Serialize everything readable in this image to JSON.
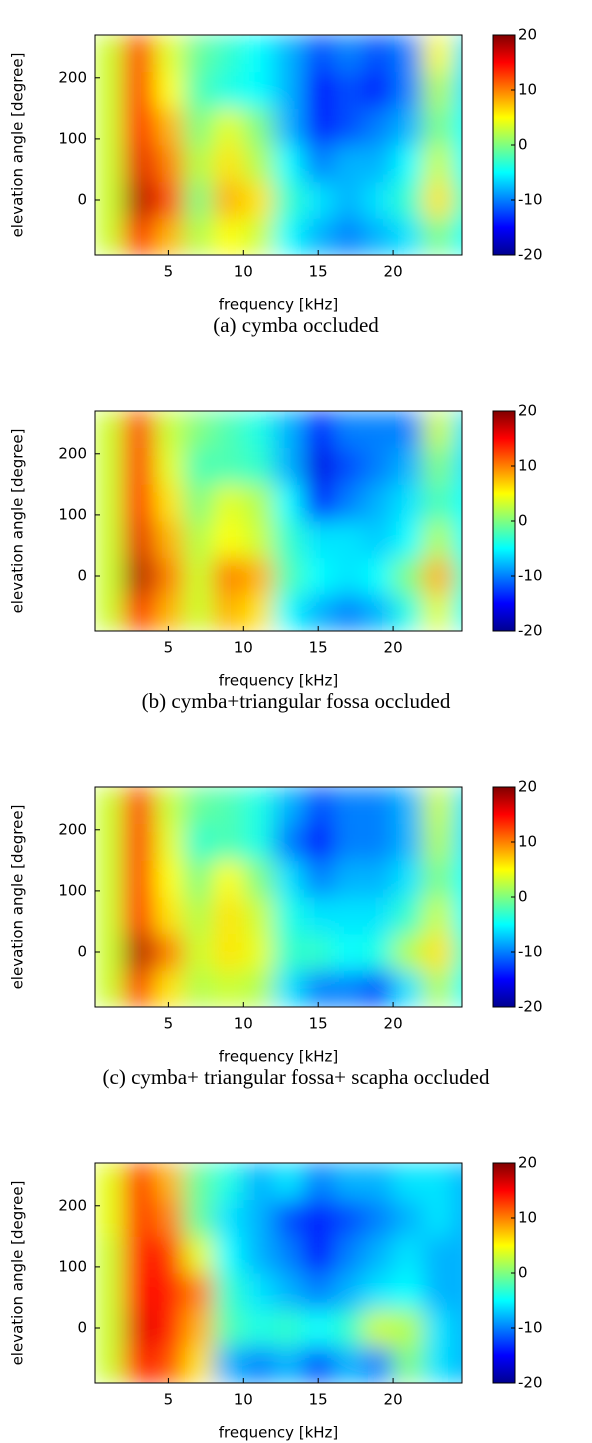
{
  "chart_data": [
    {
      "type": "heatmap",
      "colormap": "jet",
      "xlabel": "frequency [kHz]",
      "ylabel": "elevation angle [degree]",
      "caption": "(a) cymba occluded",
      "xlim": [
        0.1,
        24.6
      ],
      "ylim": [
        -90,
        270
      ],
      "xticks": [
        5,
        10,
        15,
        20
      ],
      "yticks": [
        0,
        100,
        200
      ],
      "clim": [
        -20,
        20
      ],
      "cticks": [
        20,
        10,
        0,
        -10,
        -20
      ],
      "x": [
        1,
        3,
        5,
        7,
        9,
        11,
        13,
        15,
        17,
        19,
        21,
        23,
        25
      ],
      "y": [
        -60,
        0,
        60,
        120,
        180,
        240
      ],
      "values": [
        [
          3,
          14,
          8,
          2,
          5,
          3,
          -5,
          -8,
          -10,
          -8,
          -6,
          0,
          -5
        ],
        [
          3,
          18,
          12,
          0,
          8,
          6,
          -3,
          -6,
          -8,
          -6,
          -3,
          6,
          -3
        ],
        [
          3,
          16,
          10,
          2,
          6,
          2,
          -5,
          -10,
          -8,
          -8,
          -5,
          3,
          -5
        ],
        [
          3,
          15,
          8,
          0,
          4,
          0,
          -8,
          -14,
          -12,
          -10,
          -8,
          0,
          -5
        ],
        [
          3,
          14,
          5,
          -2,
          -4,
          -5,
          -8,
          -15,
          -12,
          -14,
          -10,
          2,
          -6
        ],
        [
          3,
          13,
          4,
          -1,
          -3,
          -5,
          -8,
          -12,
          -10,
          -12,
          -10,
          5,
          -6
        ]
      ]
    },
    {
      "type": "heatmap",
      "colormap": "jet",
      "xlabel": "frequency [kHz]",
      "ylabel": "elevation angle [degree]",
      "caption": "(b) cymba+triangular fossa occluded",
      "xlim": [
        0.1,
        24.6
      ],
      "ylim": [
        -90,
        270
      ],
      "xticks": [
        5,
        10,
        15,
        20
      ],
      "yticks": [
        0,
        100,
        200
      ],
      "clim": [
        -20,
        20
      ],
      "cticks": [
        20,
        10,
        0,
        -10,
        -20
      ],
      "x": [
        1,
        3,
        5,
        7,
        9,
        11,
        13,
        15,
        17,
        19,
        21,
        23,
        25
      ],
      "y": [
        -60,
        0,
        60,
        120,
        180,
        240
      ],
      "values": [
        [
          3,
          14,
          8,
          3,
          8,
          6,
          -5,
          -8,
          -10,
          -8,
          -4,
          4,
          -5
        ],
        [
          3,
          18,
          10,
          3,
          10,
          8,
          -2,
          -5,
          -6,
          -5,
          0,
          8,
          -3
        ],
        [
          3,
          16,
          8,
          2,
          5,
          3,
          -3,
          -6,
          -6,
          -7,
          -5,
          2,
          -5
        ],
        [
          3,
          15,
          6,
          0,
          4,
          2,
          -5,
          -14,
          -10,
          -8,
          -6,
          -2,
          -5
        ],
        [
          3,
          14,
          4,
          -2,
          -2,
          -3,
          -8,
          -16,
          -12,
          -10,
          -8,
          0,
          -6
        ],
        [
          3,
          13,
          3,
          0,
          -2,
          -4,
          -8,
          -14,
          -10,
          -10,
          -10,
          3,
          -6
        ]
      ]
    },
    {
      "type": "heatmap",
      "colormap": "jet",
      "xlabel": "frequency [kHz]",
      "ylabel": "elevation angle [degree]",
      "caption": "(c) cymba+ triangular fossa+ scapha occluded",
      "xlim": [
        0.1,
        24.6
      ],
      "ylim": [
        -90,
        270
      ],
      "xticks": [
        5,
        10,
        15,
        20
      ],
      "yticks": [
        0,
        100,
        200
      ],
      "clim": [
        -20,
        20
      ],
      "cticks": [
        20,
        10,
        0,
        -10,
        -20
      ],
      "x": [
        1,
        3,
        5,
        7,
        9,
        11,
        13,
        15,
        17,
        19,
        21,
        23,
        25
      ],
      "y": [
        -60,
        0,
        60,
        120,
        180,
        240
      ],
      "values": [
        [
          3,
          13,
          6,
          2,
          3,
          2,
          -6,
          -10,
          -10,
          -12,
          -6,
          2,
          -5
        ],
        [
          3,
          18,
          10,
          3,
          6,
          4,
          -3,
          -3,
          -5,
          -4,
          2,
          6,
          -3
        ],
        [
          3,
          15,
          6,
          2,
          6,
          3,
          -4,
          -6,
          -6,
          -6,
          -3,
          3,
          -5
        ],
        [
          3,
          14,
          5,
          0,
          5,
          0,
          -6,
          -10,
          -8,
          -8,
          -6,
          0,
          -5
        ],
        [
          3,
          14,
          4,
          -3,
          -2,
          -4,
          -10,
          -15,
          -10,
          -10,
          -8,
          2,
          -6
        ],
        [
          3,
          13,
          3,
          -1,
          -2,
          -4,
          -8,
          -12,
          -10,
          -10,
          -8,
          3,
          -6
        ]
      ]
    },
    {
      "type": "heatmap",
      "colormap": "jet",
      "xlabel": "frequency [kHz]",
      "ylabel": "elevation angle [degree]",
      "xlim": [
        0.1,
        24.6
      ],
      "ylim": [
        -90,
        270
      ],
      "xticks": [
        5,
        10,
        15,
        20
      ],
      "yticks": [
        0,
        100,
        200
      ],
      "clim": [
        -20,
        20
      ],
      "cticks": [
        20,
        10,
        0,
        -10,
        -20
      ],
      "x": [
        1,
        3,
        5,
        7,
        9,
        11,
        13,
        15,
        17,
        19,
        21,
        23,
        25
      ],
      "y": [
        -60,
        0,
        60,
        120,
        180,
        240
      ],
      "values": [
        [
          3,
          14,
          12,
          6,
          -8,
          -10,
          -8,
          -12,
          -8,
          -10,
          0,
          -6,
          -8
        ],
        [
          3,
          16,
          14,
          8,
          -2,
          -4,
          -3,
          -5,
          -3,
          3,
          2,
          -6,
          -8
        ],
        [
          3,
          15,
          14,
          10,
          -3,
          -6,
          -8,
          -10,
          -8,
          -6,
          -5,
          -8,
          -8
        ],
        [
          3,
          14,
          13,
          4,
          -5,
          -8,
          -10,
          -15,
          -10,
          -8,
          -6,
          -8,
          -8
        ],
        [
          4,
          13,
          10,
          -1,
          -6,
          -8,
          -12,
          -14,
          -12,
          -10,
          -8,
          -6,
          -8
        ],
        [
          4,
          13,
          8,
          -1,
          -4,
          -8,
          -6,
          -10,
          -8,
          -8,
          -6,
          -6,
          -8
        ]
      ]
    }
  ]
}
